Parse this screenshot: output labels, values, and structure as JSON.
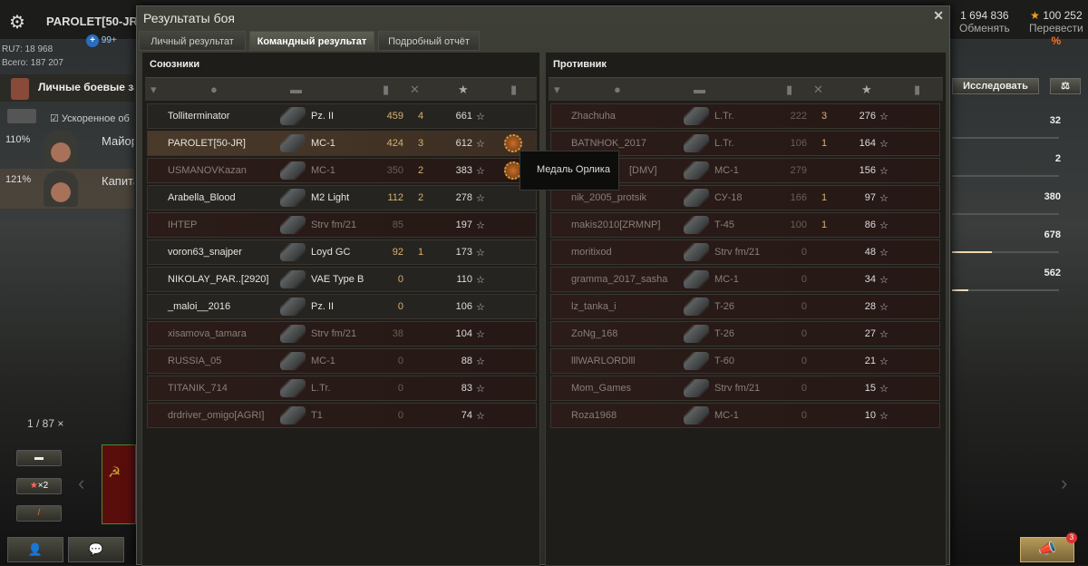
{
  "header": {
    "username": "PAROLET[50-JR]",
    "notifications": "99+",
    "ru7": "RU7: 18 968",
    "total": "Всего: 187 207",
    "credits": "1 694 836",
    "exchange": "Обменять",
    "gold": "100 252",
    "transfer": "Перевести",
    "percent": "%"
  },
  "left": {
    "task": "Личные боевые зада",
    "accel": "Ускоренное об",
    "crew": [
      {
        "pct": "110%",
        "rank": "Майор"
      },
      {
        "pct": "121%",
        "rank": "Капита"
      }
    ],
    "counter": "1 / 87",
    "x2": "×2"
  },
  "right": {
    "research": "Исследовать",
    "stats": [
      {
        "value": "32",
        "fill": 0
      },
      {
        "value": "2",
        "fill": 0
      },
      {
        "value": "380",
        "fill": 0
      },
      {
        "value": "678",
        "fill": 0.37
      },
      {
        "value": "562",
        "fill": 0.15
      }
    ],
    "badge": "3"
  },
  "dialog": {
    "title": "Результаты боя",
    "tabs": [
      "Личный результат",
      "Командный результат",
      "Подробный отчёт"
    ],
    "active_tab": 1,
    "allies_title": "Союзники",
    "enemies_title": "Противник",
    "tooltip": "Медаль Орлика",
    "allies": [
      {
        "name": "Tolliterminator",
        "tank": "Pz. II",
        "damage": "459",
        "frags": "4",
        "xp": "661",
        "state": "alive"
      },
      {
        "name": "PAROLET[50-JR]",
        "tank": "MC-1",
        "damage": "424",
        "frags": "3",
        "xp": "612",
        "state": "self",
        "medal": true
      },
      {
        "name": "USMANOVKazan",
        "tank": "MC-1",
        "damage": "350",
        "frags": "2",
        "xp": "383",
        "state": "dead",
        "medal": true
      },
      {
        "name": "Arabella_Blood",
        "tank": "M2 Light",
        "damage": "112",
        "frags": "2",
        "xp": "278",
        "state": "alive"
      },
      {
        "name": "IHTEP",
        "tank": "Strv fm/21",
        "damage": "85",
        "frags": "",
        "xp": "197",
        "state": "dead"
      },
      {
        "name": "voron63_snajper",
        "tank": "Loyd GC",
        "damage": "92",
        "frags": "1",
        "xp": "173",
        "state": "alive"
      },
      {
        "name": "NIKOLAY_PAR..[2920]",
        "tank": "VAE Type B",
        "damage": "0",
        "frags": "",
        "xp": "110",
        "state": "alive"
      },
      {
        "name": "_maloi__2016",
        "tank": "Pz. II",
        "damage": "0",
        "frags": "",
        "xp": "106",
        "state": "alive"
      },
      {
        "name": "xisamova_tamara",
        "tank": "Strv fm/21",
        "damage": "38",
        "frags": "",
        "xp": "104",
        "state": "dead"
      },
      {
        "name": "RUSSIA_05",
        "tank": "MC-1",
        "damage": "0",
        "frags": "",
        "xp": "88",
        "state": "dead"
      },
      {
        "name": "TITANIK_714",
        "tank": "L.Tr.",
        "damage": "0",
        "frags": "",
        "xp": "83",
        "state": "dead"
      },
      {
        "name": "drdriver_omigo[AGRI]",
        "tank": "T1",
        "damage": "0",
        "frags": "",
        "xp": "74",
        "state": "dead"
      }
    ],
    "enemies": [
      {
        "name": "Zhachuha",
        "tank": "L.Tr.",
        "damage": "222",
        "frags": "3",
        "xp": "276",
        "state": "dead"
      },
      {
        "name": "BATNHOK_2017",
        "tank": "L.Tr.",
        "damage": "106",
        "frags": "1",
        "xp": "164",
        "state": "dead"
      },
      {
        "name": "[DMV]",
        "tank": "MC-1",
        "damage": "279",
        "frags": "",
        "xp": "156",
        "state": "dead"
      },
      {
        "name": "nik_2005_protsik",
        "tank": "СУ-18",
        "damage": "166",
        "frags": "1",
        "xp": "97",
        "state": "dead"
      },
      {
        "name": "makis2010[ZRMNP]",
        "tank": "T-45",
        "damage": "100",
        "frags": "1",
        "xp": "86",
        "state": "dead"
      },
      {
        "name": "moritixod",
        "tank": "Strv fm/21",
        "damage": "0",
        "frags": "",
        "xp": "48",
        "state": "dead"
      },
      {
        "name": "gramma_2017_sasha",
        "tank": "MC-1",
        "damage": "0",
        "frags": "",
        "xp": "34",
        "state": "dead"
      },
      {
        "name": "lz_tanka_i",
        "tank": "T-26",
        "damage": "0",
        "frags": "",
        "xp": "28",
        "state": "dead"
      },
      {
        "name": "ZoNg_168",
        "tank": "T-26",
        "damage": "0",
        "frags": "",
        "xp": "27",
        "state": "dead"
      },
      {
        "name": "lllWARLORDlll",
        "tank": "T-60",
        "damage": "0",
        "frags": "",
        "xp": "21",
        "state": "dead"
      },
      {
        "name": "Mom_Games",
        "tank": "Strv fm/21",
        "damage": "0",
        "frags": "",
        "xp": "15",
        "state": "dead"
      },
      {
        "name": "Roza1968",
        "tank": "MC-1",
        "damage": "0",
        "frags": "",
        "xp": "10",
        "state": "dead"
      }
    ]
  }
}
